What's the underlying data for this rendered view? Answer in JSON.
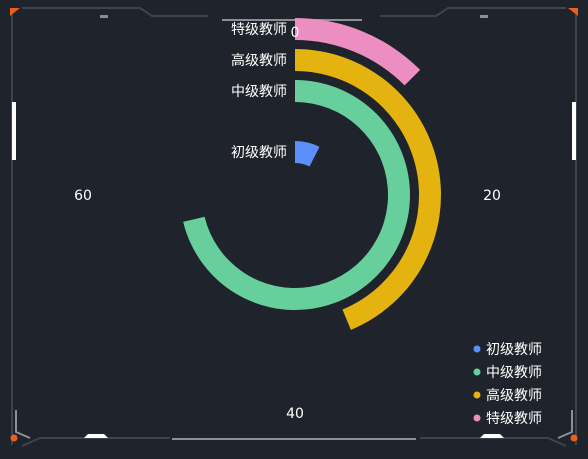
{
  "chart_data": {
    "type": "polar-bar",
    "angle_axis": {
      "min": 0,
      "max": 80,
      "tick_labels": [
        "0",
        "20",
        "40",
        "60"
      ]
    },
    "categories": [
      "初级教师",
      "中级教师",
      "高级教师",
      "特级教师"
    ],
    "values": [
      6,
      57,
      35,
      10
    ],
    "colors": [
      "#5b8ff9",
      "#67cf9c",
      "#e5b30f",
      "#ed8ec2"
    ],
    "legend": {
      "position": "bottom-right",
      "items": [
        "初级教师",
        "中级教师",
        "高级教师",
        "特级教师"
      ]
    }
  },
  "colors": {
    "background": "#1f232b",
    "frame": "#3d4350",
    "frame_highlight": "#ffffff",
    "corner_accent": "#e8601c",
    "text": "#ffffff"
  }
}
